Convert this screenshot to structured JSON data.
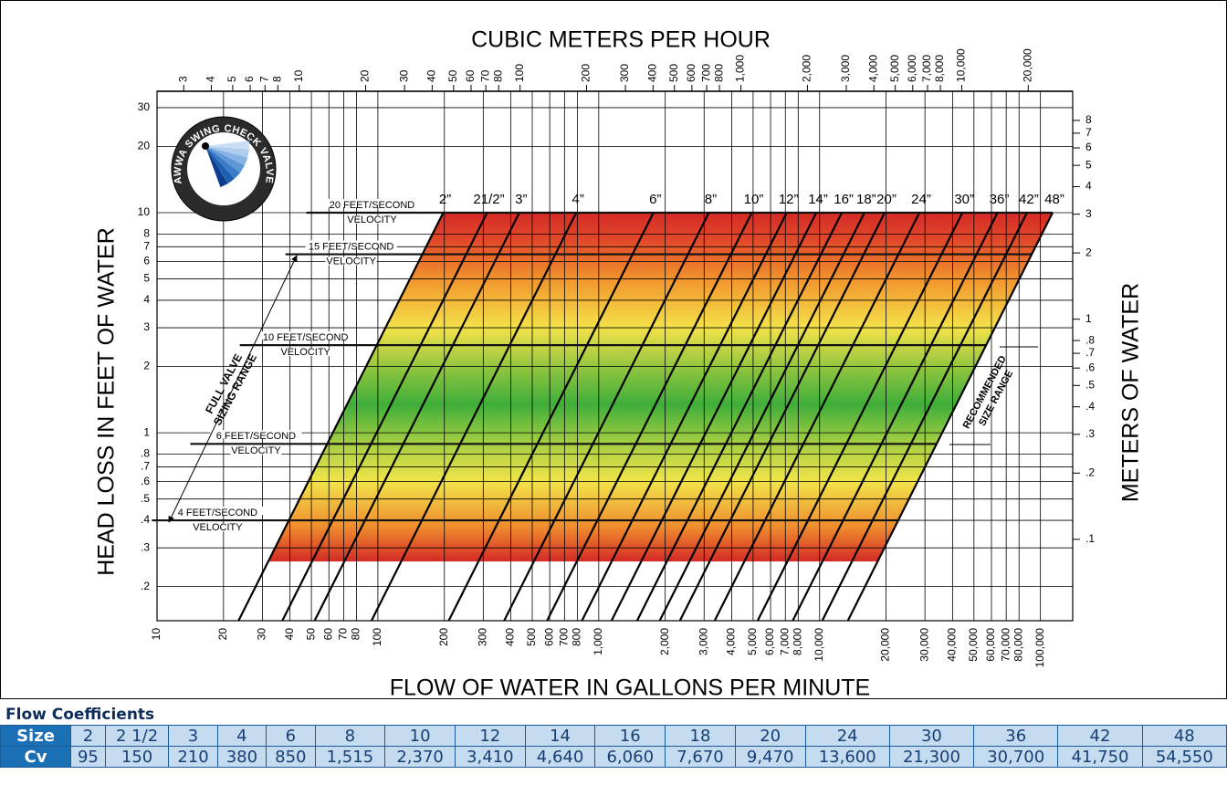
{
  "chart_data": {
    "type": "valve-sizing",
    "x_title": "FLOW OF WATER IN GALLONS PER MINUTE",
    "x2_title": "CUBIC METERS PER HOUR",
    "y_title": "HEAD LOSS IN FEET OF WATER",
    "y2_title": "METERS OF WATER",
    "xscale": "log",
    "yscale": "log",
    "grid": true,
    "xlim": [
      10,
      140000
    ],
    "xticks": [
      10,
      20,
      30,
      40,
      50,
      60,
      70,
      80,
      100,
      200,
      300,
      400,
      500,
      600,
      700,
      800,
      {
        "value": 1000,
        "label": "1,000"
      },
      {
        "value": 2000,
        "label": "2,000"
      },
      {
        "value": 3000,
        "label": "3,000"
      },
      {
        "value": 4000,
        "label": "4,000"
      },
      {
        "value": 5000,
        "label": "5,000"
      },
      {
        "value": 6000,
        "label": "6,000"
      },
      {
        "value": 7000,
        "label": "7,000"
      },
      {
        "value": 8000,
        "label": "8,000"
      },
      {
        "value": 10000,
        "label": "10,000"
      },
      {
        "value": 20000,
        "label": "20,000"
      },
      {
        "value": 30000,
        "label": "30,000"
      },
      {
        "value": 40000,
        "label": "40,000"
      },
      {
        "value": 50000,
        "label": "50,000"
      },
      {
        "value": 60000,
        "label": "60,000"
      },
      {
        "value": 70000,
        "label": "70,000"
      },
      {
        "value": 80000,
        "label": "80,000"
      },
      {
        "value": 100000,
        "label": "100,000"
      }
    ],
    "x2lim": [
      2.271,
      31794
    ],
    "x2ticks": [
      3,
      4,
      5,
      6,
      7,
      8,
      10,
      20,
      30,
      40,
      50,
      60,
      70,
      80,
      100,
      200,
      300,
      400,
      500,
      600,
      700,
      800,
      {
        "value": 1000,
        "label": "1,000"
      },
      {
        "value": 2000,
        "label": "2,000"
      },
      {
        "value": 3000,
        "label": "3,000"
      },
      {
        "value": 4000,
        "label": "4,000"
      },
      {
        "value": 5000,
        "label": "5,000"
      },
      {
        "value": 6000,
        "label": "6,000"
      },
      {
        "value": 7000,
        "label": "7,000"
      },
      {
        "value": 8000,
        "label": "8,000"
      },
      {
        "value": 10000,
        "label": "10,000"
      },
      {
        "value": 20000,
        "label": "20,000"
      }
    ],
    "ylim": [
      0.14,
      35.6
    ],
    "yticks": [
      30,
      20,
      10,
      8,
      7,
      6,
      5,
      4,
      3,
      2,
      1,
      {
        "value": 0.8,
        "label": ".8"
      },
      {
        "value": 0.7,
        "label": ".7"
      },
      {
        "value": 0.6,
        "label": ".6"
      },
      {
        "value": 0.5,
        "label": ".5"
      },
      {
        "value": 0.4,
        "label": ".4"
      },
      {
        "value": 0.3,
        "label": ".3"
      },
      {
        "value": 0.2,
        "label": ".2"
      }
    ],
    "y2lim": [
      0.0427,
      10.85
    ],
    "y2ticks": [
      8,
      7,
      6,
      5,
      4,
      3,
      2,
      1,
      {
        "value": 0.8,
        "label": ".8"
      },
      {
        "value": 0.7,
        "label": ".7"
      },
      {
        "value": 0.6,
        "label": ".6"
      },
      {
        "value": 0.5,
        "label": ".5"
      },
      {
        "value": 0.4,
        "label": ".4"
      },
      {
        "value": 0.3,
        "label": ".3"
      },
      {
        "value": 0.2,
        "label": ".2"
      },
      {
        "value": 0.1,
        "label": ".1"
      }
    ],
    "size_labels": [
      "2”",
      "21/2”",
      "3”",
      "4”",
      "6”",
      "8”",
      "10”",
      "12”",
      "14”",
      "16”",
      "18”",
      "20”",
      "24”",
      "30”",
      "36”",
      "42”",
      "48”"
    ],
    "velocity_lines": [
      {
        "label": [
          "20 FEET/SECOND",
          "VELOCITY"
        ],
        "value": 10
      },
      {
        "label": [
          "15 FEET/SECOND",
          "VELOCITY"
        ],
        "value": 6.47
      },
      {
        "label": [
          "10 FEET/SECOND",
          "VELOCITY"
        ],
        "value": 2.5
      },
      {
        "label": [
          "6 FEET/SECOND",
          "VELOCITY"
        ],
        "value": 0.89
      },
      {
        "label": [
          "4 FEET/SECOND",
          "VELOCITY"
        ],
        "value": 0.4
      }
    ],
    "colored_range": [
      0.26,
      10
    ],
    "annotations": [
      [
        "FULL VALVE",
        "SIZING RANGE"
      ],
      [
        "RECOMMENDED",
        "SIZE RANGE"
      ]
    ],
    "logo": "AWWA SWING CHECK VALVE"
  },
  "table": {
    "title": "Flow Coefficients",
    "size_label": "Size",
    "sizes": [
      "2",
      "2 1/2",
      "3",
      "4",
      "6",
      "8",
      "10",
      "12",
      "14",
      "16",
      "18",
      "20",
      "24",
      "30",
      "36",
      "42",
      "48"
    ],
    "cv_label": "Cv",
    "cv": [
      95,
      150,
      210,
      380,
      850,
      1515,
      2370,
      3410,
      4640,
      6060,
      7670,
      9470,
      13600,
      21300,
      30700,
      41750,
      54550
    ],
    "cv_labels": [
      "95",
      "150",
      "210",
      "380",
      "850",
      "1,515",
      "2,370",
      "3,410",
      "4,640",
      "6,060",
      "7,670",
      "9,470",
      "13,600",
      "21,300",
      "30,700",
      "41,750",
      "54,550"
    ]
  }
}
